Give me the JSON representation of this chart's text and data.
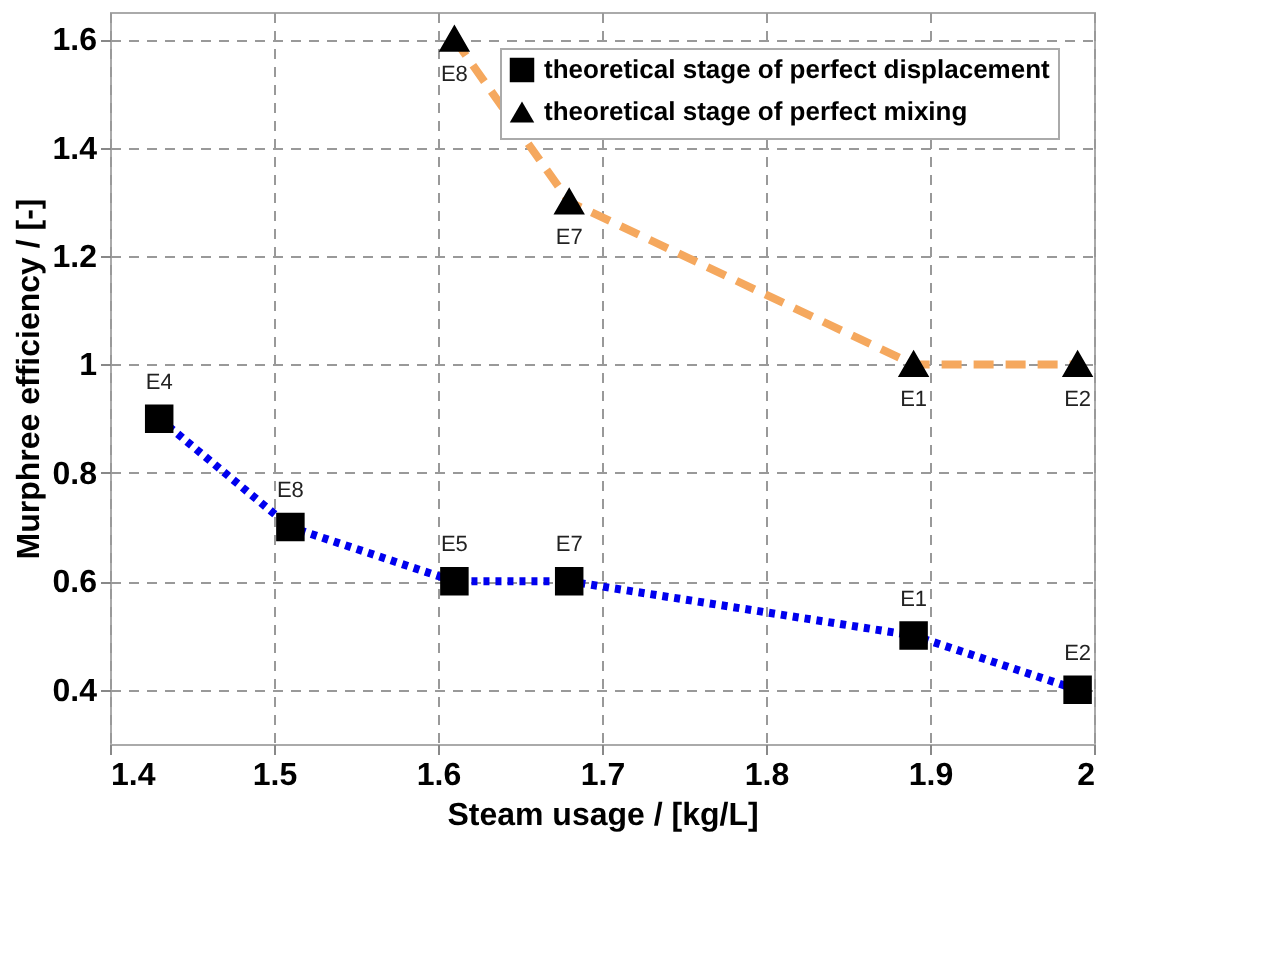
{
  "chart_data": {
    "type": "line",
    "xlabel": "Steam usage / [kg/L]",
    "ylabel": "Murphree efficiency / [-]",
    "xlim": [
      1.4,
      2.0
    ],
    "xticks": [
      1.4,
      1.5,
      1.6,
      1.7,
      1.8,
      1.9,
      2
    ],
    "ylim": [
      0.3,
      1.65
    ],
    "yticks": [
      0.4,
      0.6,
      0.8,
      1,
      1.2,
      1.4,
      1.6
    ],
    "grid": true,
    "legend": "top right",
    "series": [
      {
        "name": "theoretical stage of perfect displacement",
        "color": "#0000ee",
        "marker": "square",
        "line_style": "dotted",
        "x": [
          1.43,
          1.51,
          1.61,
          1.68,
          1.89,
          1.99
        ],
        "values": [
          0.9,
          0.7,
          0.6,
          0.6,
          0.5,
          0.4
        ]
      },
      {
        "name": "theoretical stage of perfect mixing",
        "color": "#f5a85e",
        "marker": "triangle",
        "line_style": "dashed",
        "x": [
          1.61,
          1.68,
          1.89,
          1.99
        ],
        "values": [
          1.6,
          1.3,
          1.0,
          1.0
        ]
      }
    ],
    "annotations": [
      {
        "text": "E4",
        "x": 1.43,
        "y": 0.9
      },
      {
        "text": "E8",
        "x": 1.51,
        "y": 0.7
      },
      {
        "text": "E5",
        "x": 1.61,
        "y": 0.6
      },
      {
        "text": "E7",
        "x": 1.68,
        "y": 0.6
      },
      {
        "text": "E1",
        "x": 1.89,
        "y": 0.5
      },
      {
        "text": "E2",
        "x": 1.99,
        "y": 0.4
      },
      {
        "text": "E8",
        "x": 1.61,
        "y": 1.6
      },
      {
        "text": "E7",
        "x": 1.68,
        "y": 1.3
      },
      {
        "text": "E1",
        "x": 1.89,
        "y": 1.0
      },
      {
        "text": "E2",
        "x": 1.99,
        "y": 1.0
      }
    ]
  }
}
